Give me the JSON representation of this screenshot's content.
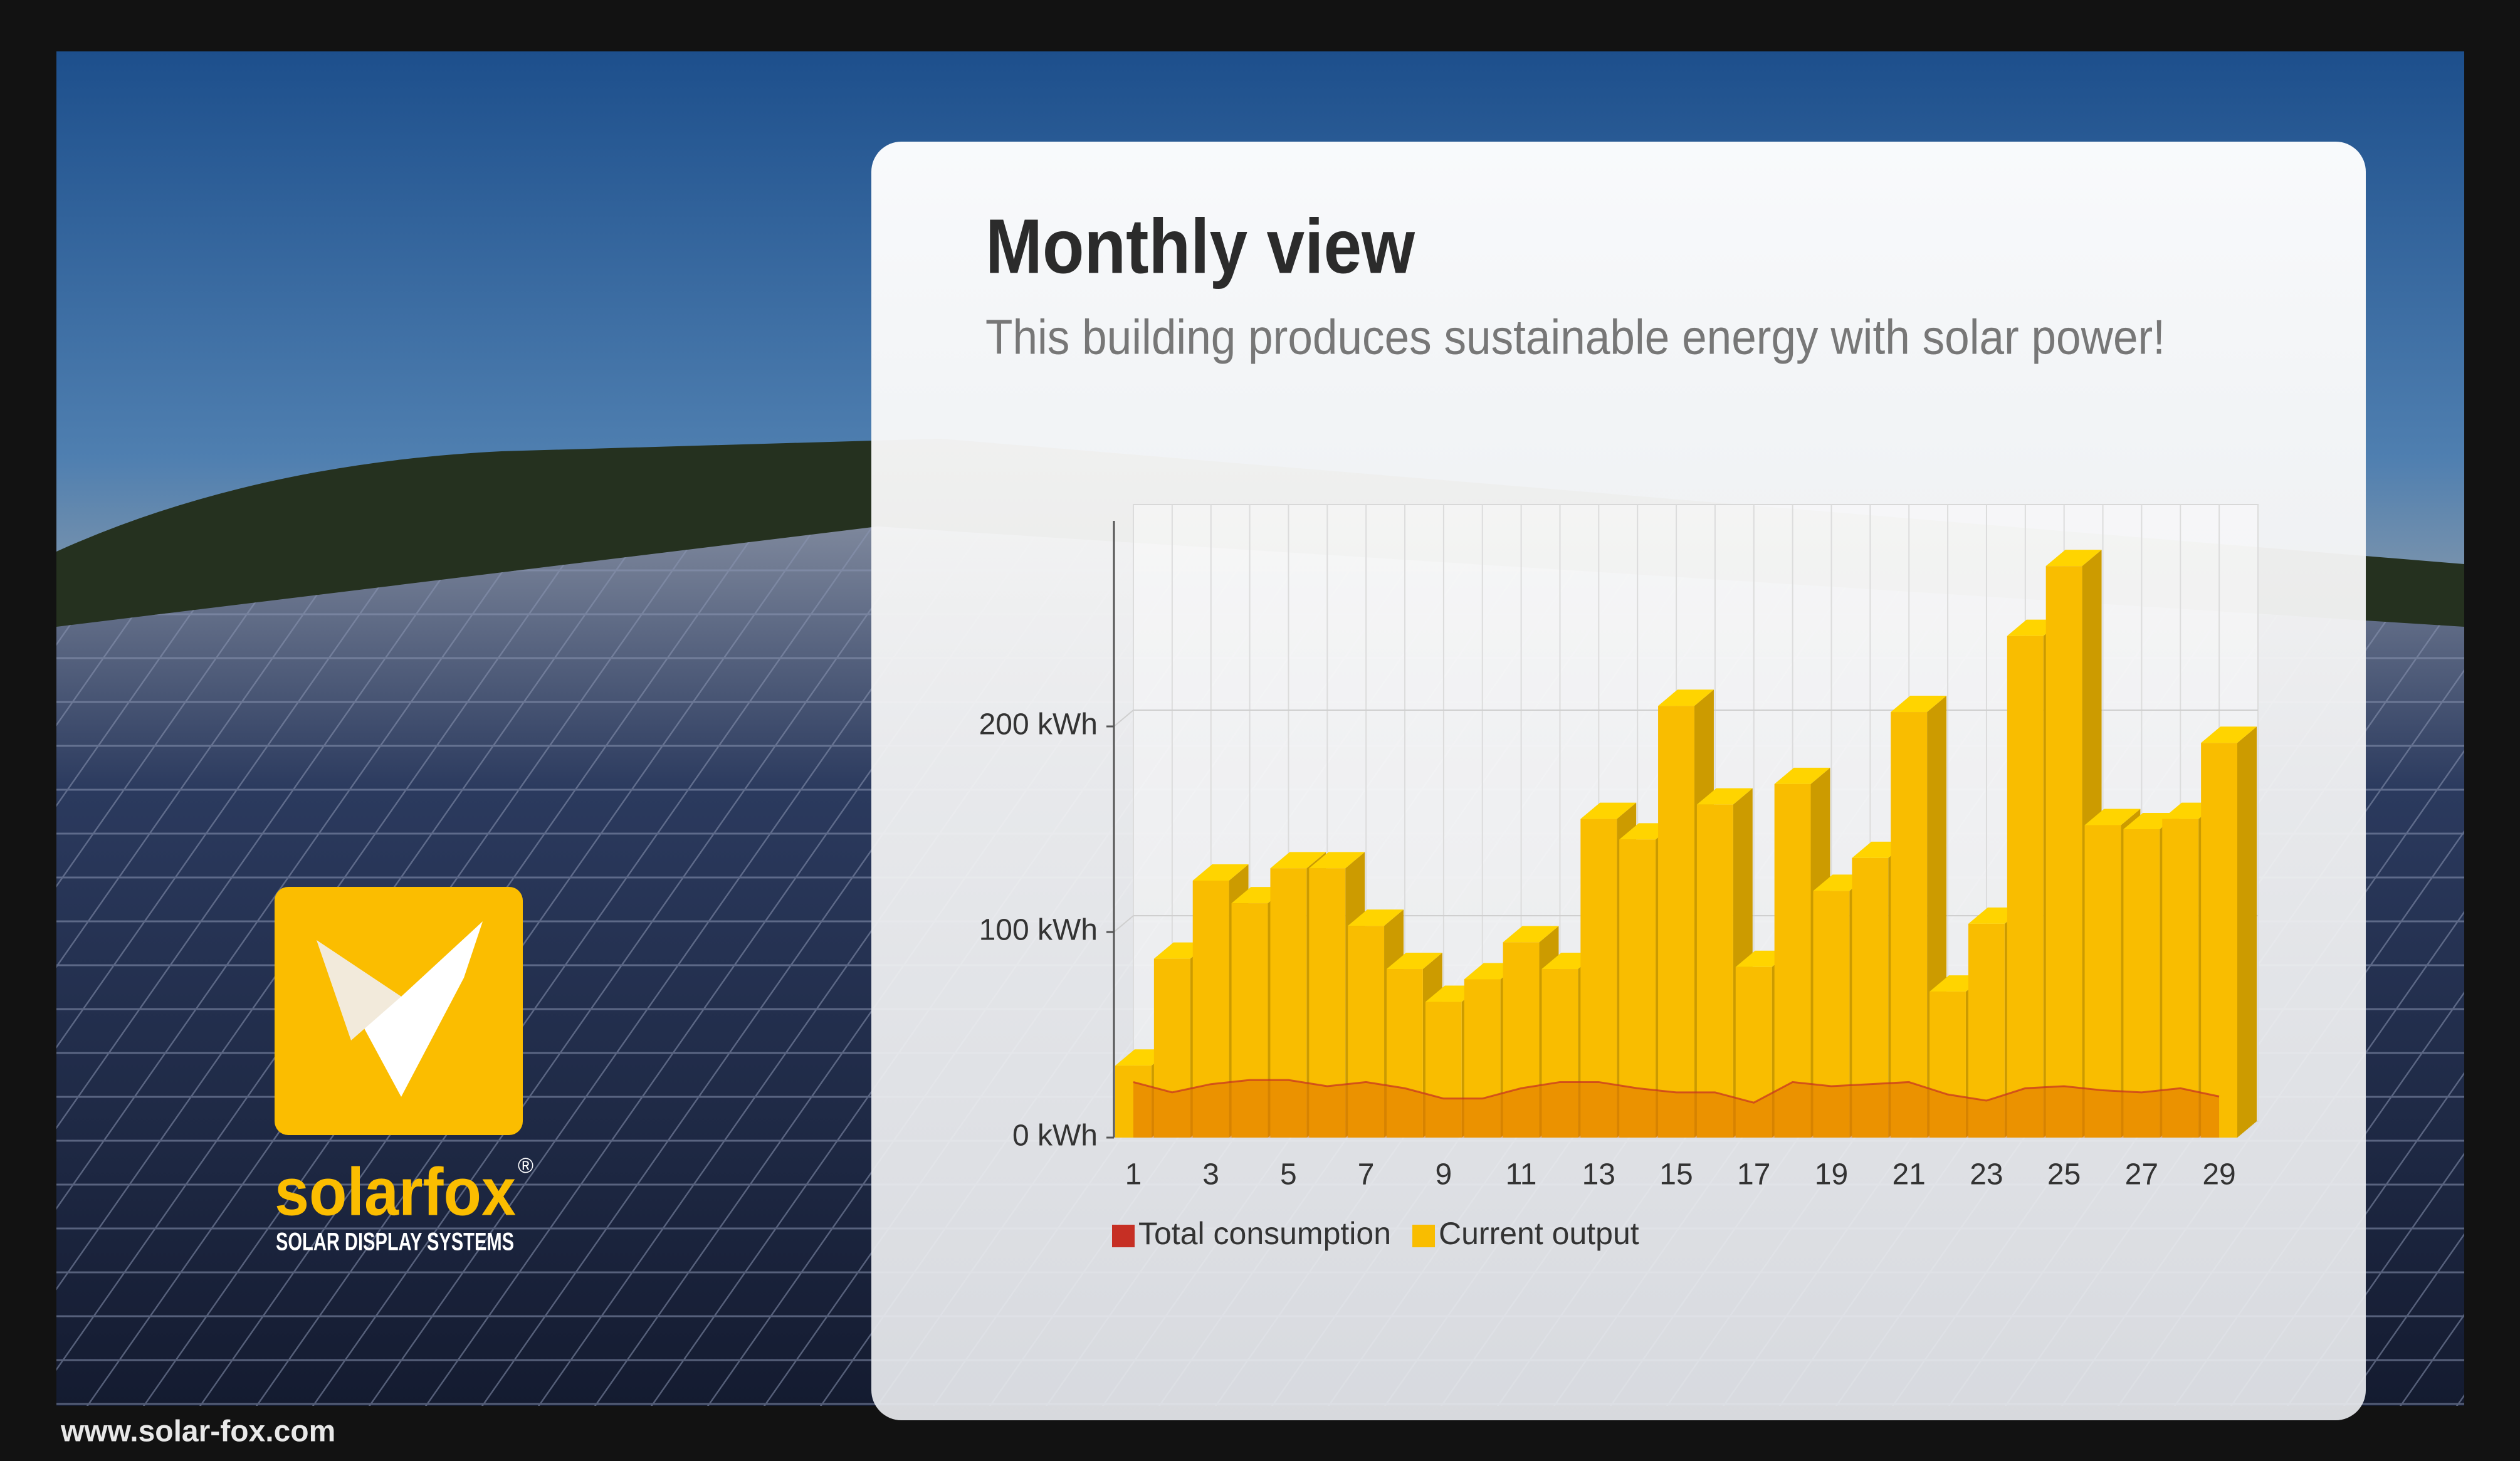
{
  "chart_data": {
    "type": "bar",
    "title": "Monthly view",
    "subtitle": "This building produces sustainable energy with solar power!",
    "categories": [
      "1",
      null,
      "3",
      null,
      "5",
      null,
      "7",
      null,
      "9",
      null,
      "11",
      null,
      "13",
      null,
      "15",
      null,
      "17",
      null,
      "19",
      null,
      "21",
      null,
      "23",
      null,
      "25",
      null,
      "27",
      null,
      "29"
    ],
    "series": [
      {
        "name": "Total consumption",
        "color": "#c62f24",
        "type": "area",
        "values": [
          27,
          22,
          26,
          28,
          28,
          25,
          27,
          24,
          19,
          19,
          24,
          27,
          27,
          24,
          22,
          22,
          17,
          27,
          25,
          26,
          27,
          21,
          18,
          24,
          25,
          23,
          22,
          24,
          20
        ]
      },
      {
        "name": "Current output",
        "color": "#f9bd00",
        "type": "bar",
        "values": [
          35,
          87,
          125,
          114,
          131,
          131,
          103,
          82,
          66,
          77,
          95,
          82,
          155,
          145,
          210,
          162,
          83,
          172,
          120,
          136,
          207,
          71,
          104,
          244,
          278,
          152,
          150,
          155,
          192
        ]
      }
    ],
    "ylim": [
      0,
      300
    ],
    "yticks": [
      {
        "value": 0,
        "label": "0 kWh"
      },
      {
        "value": 100,
        "label": "100 kWh"
      },
      {
        "value": 200,
        "label": "200 kWh"
      }
    ],
    "grid": true,
    "legend": "bottom-left"
  },
  "branding": {
    "logo_name": "solarfox",
    "registered_mark": "®",
    "tagline": "SOLAR DISPLAY SYSTEMS",
    "url": "www.solar-fox.com"
  }
}
